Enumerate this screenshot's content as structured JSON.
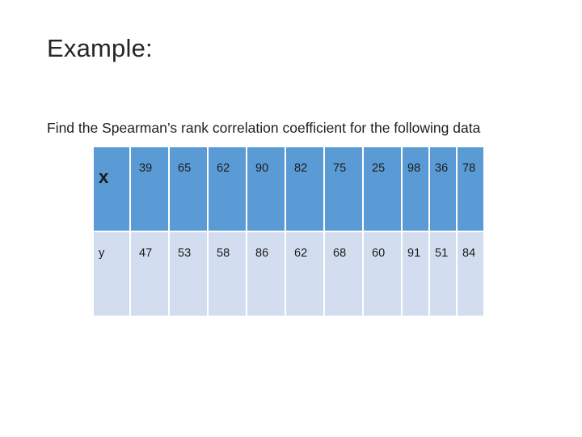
{
  "slide": {
    "title": "Example:",
    "subtitle": "Find the Spearman’s rank correlation coefficient for the following data"
  },
  "table": {
    "rows": [
      {
        "label": "x",
        "values": [
          "39",
          "65",
          "62",
          "90",
          "82",
          "75",
          "25",
          "98",
          "36",
          "78"
        ]
      },
      {
        "label": "y",
        "values": [
          "47",
          "53",
          "58",
          "86",
          "62",
          "68",
          "60",
          "91",
          "51",
          "84"
        ]
      }
    ]
  },
  "colors": {
    "header_row": "#5b9bd5",
    "body_row": "#d2deef"
  }
}
